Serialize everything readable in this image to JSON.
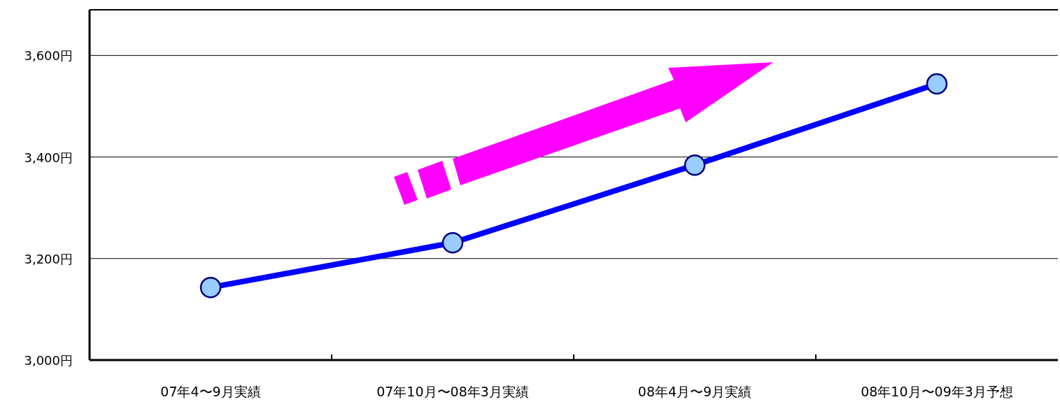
{
  "chart_data": {
    "type": "line",
    "categories": [
      "07年4〜9月実績",
      "07年10月〜08年3月実績",
      "08年4月〜9月実績",
      "08年10月〜09年3月予想"
    ],
    "series": [
      {
        "color": "#0000ff",
        "values": [
          3143,
          3231,
          3384,
          3544
        ]
      }
    ],
    "ylim": [
      3000,
      3690
    ],
    "yticks": [
      {
        "value": 3000,
        "label": "3,000円"
      },
      {
        "value": 3200,
        "label": "3,200円"
      },
      {
        "value": 3400,
        "label": "3,400円"
      },
      {
        "value": 3600,
        "label": "3,600円"
      }
    ],
    "grid": "y",
    "marker": "circle",
    "line_style": "solid"
  }
}
